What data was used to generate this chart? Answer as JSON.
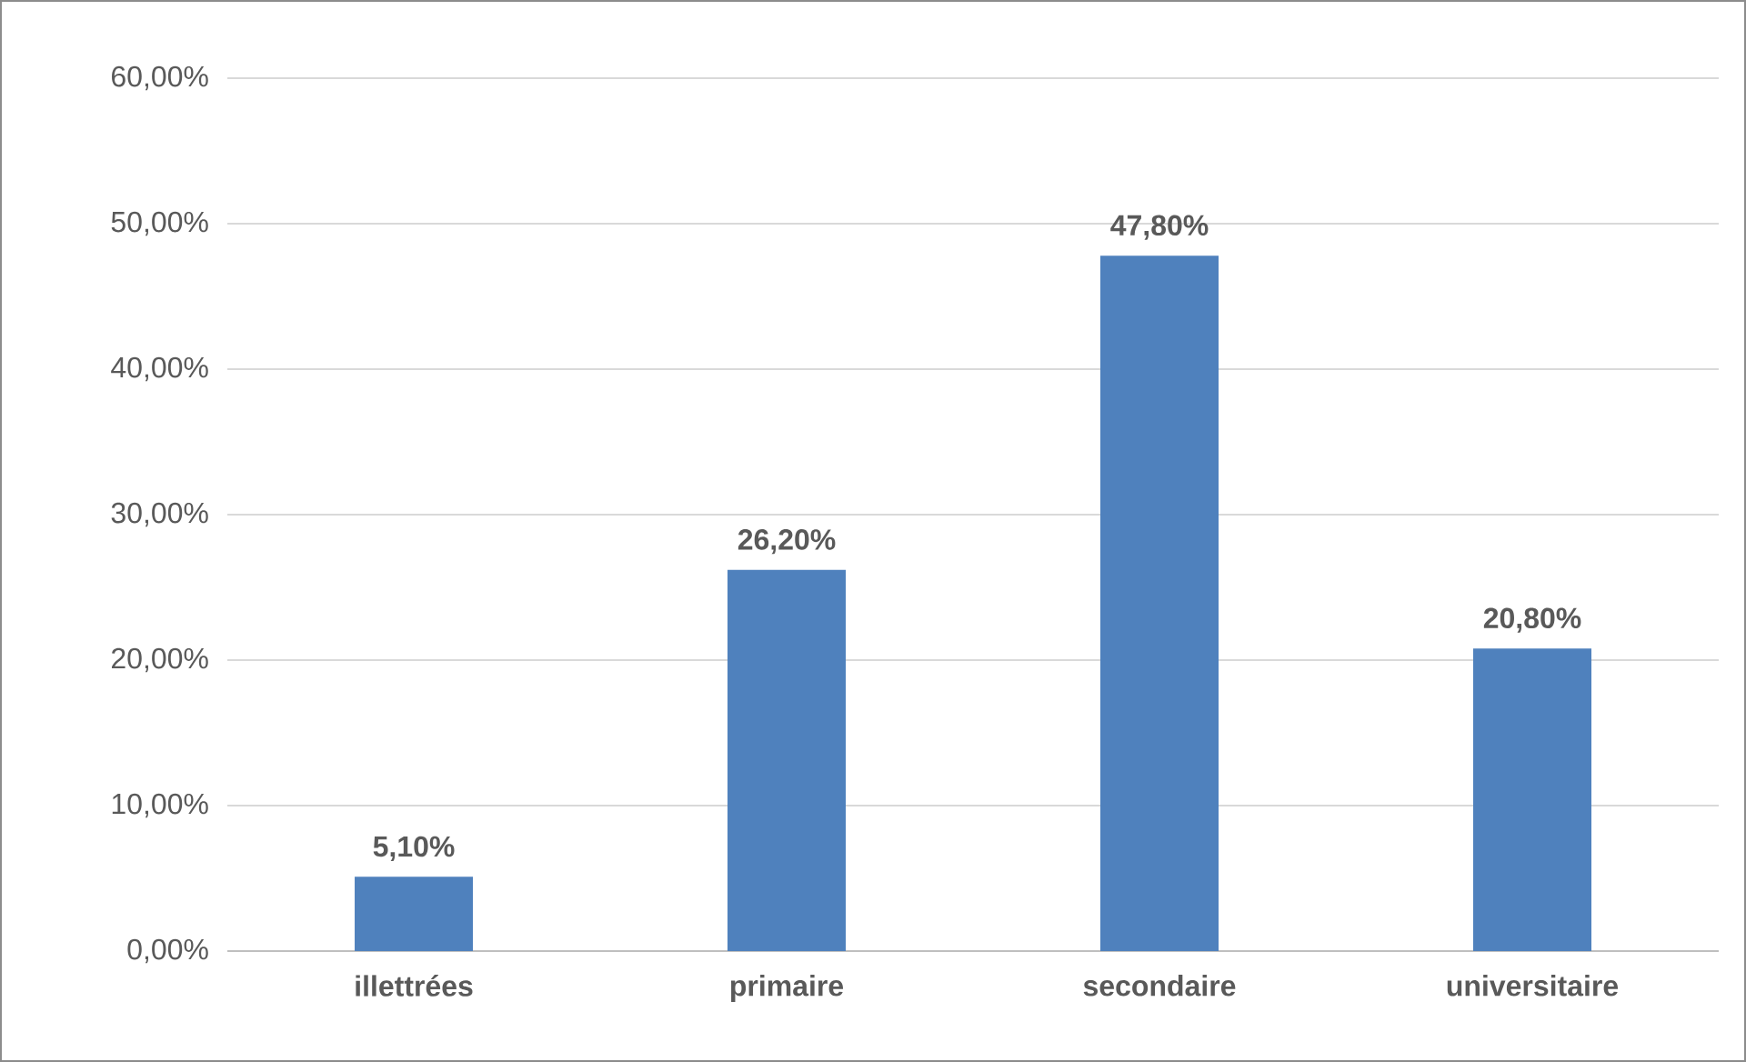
{
  "chart_data": {
    "type": "bar",
    "categories": [
      "illettrées",
      "primaire",
      "secondaire",
      "universitaire"
    ],
    "values": [
      5.1,
      26.2,
      47.8,
      20.8
    ],
    "value_labels": [
      "5,10%",
      "26,20%",
      "47,80%",
      "20,80%"
    ],
    "color": "#4f81bd",
    "ylim": [
      0,
      60
    ],
    "yticks": [
      {
        "value": 0,
        "label": "0,00%"
      },
      {
        "value": 10,
        "label": "10,00%"
      },
      {
        "value": 20,
        "label": "20,00%"
      },
      {
        "value": 30,
        "label": "30,00%"
      },
      {
        "value": 40,
        "label": "40,00%"
      },
      {
        "value": 50,
        "label": "50,00%"
      },
      {
        "value": 60,
        "label": "60,00%"
      }
    ],
    "grid": "y"
  }
}
